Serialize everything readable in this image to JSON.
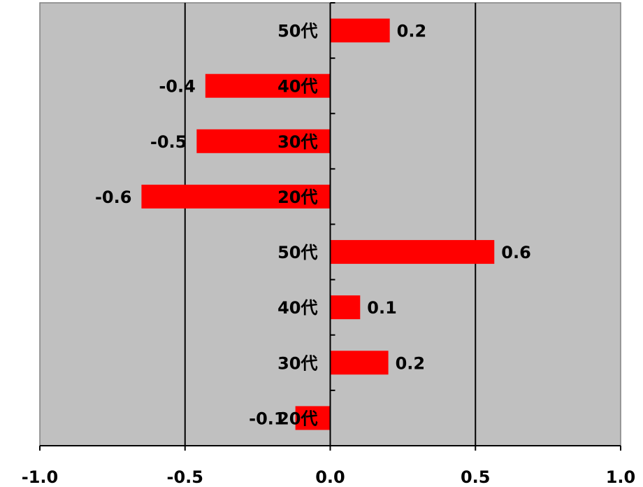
{
  "chart_data": {
    "type": "bar",
    "orientation": "horizontal",
    "categories": [
      "50代",
      "40代",
      "30代",
      "20代",
      "50代",
      "40代",
      "30代",
      "20代"
    ],
    "values": [
      0.2,
      -0.4,
      -0.5,
      -0.6,
      0.6,
      0.1,
      0.2,
      -0.1
    ],
    "bar_values": [
      0.205,
      -0.43,
      -0.46,
      -0.65,
      0.565,
      0.103,
      0.2,
      -0.12
    ],
    "data_labels": [
      "0.2",
      "-0.4",
      "-0.5",
      "-0.6",
      "0.6",
      "0.1",
      "0.2",
      "-0.1"
    ],
    "xlim": [
      -1.0,
      1.0
    ],
    "x_ticks": [
      -1.0,
      -0.5,
      0.0,
      0.5,
      1.0
    ],
    "x_tick_labels": [
      "-1.0",
      "-0.5",
      "0.0",
      "0.5",
      "1.0"
    ],
    "gridlines": [
      -0.5,
      0.5
    ],
    "grid": true,
    "title": "",
    "xlabel": "",
    "ylabel": "",
    "colors": {
      "bar": "#ff0000",
      "plot_background": "#c0c0c0",
      "gridline": "#000000",
      "axis": "#000000",
      "border": "#808080",
      "page_background": "#ffffff"
    }
  }
}
